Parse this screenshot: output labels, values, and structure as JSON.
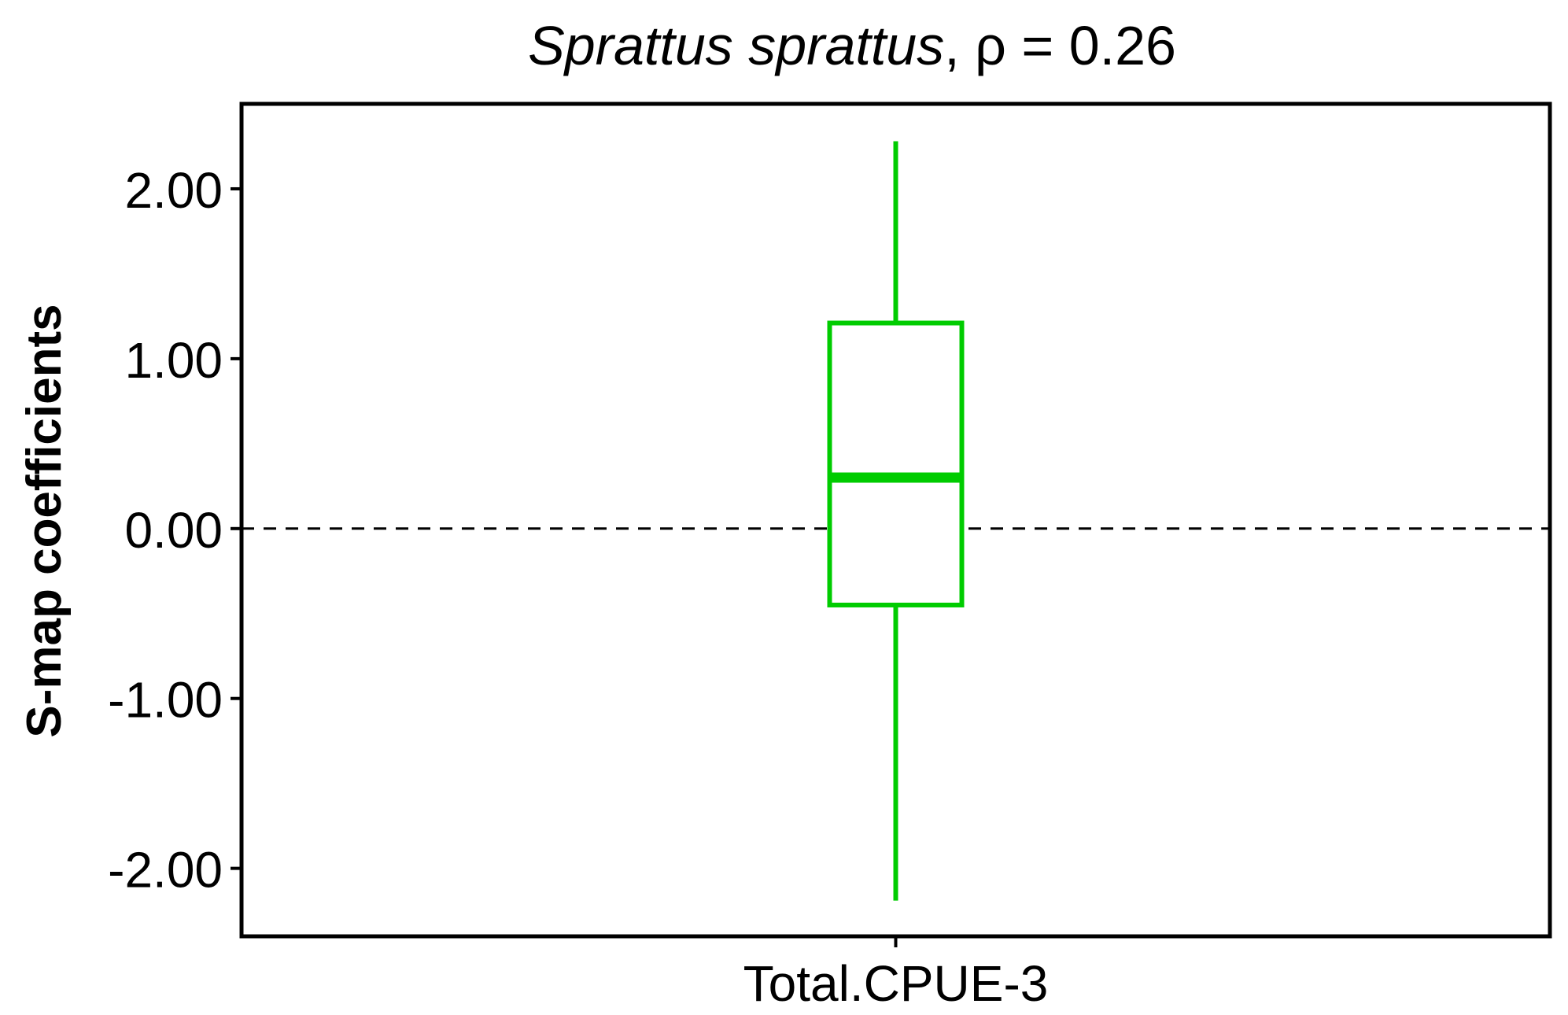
{
  "chart_data": {
    "type": "box",
    "title": {
      "species": "Sprattus sprattus",
      "suffix": ", ρ = 0.26"
    },
    "ylabel": "S-map coefficients",
    "xlabel": "",
    "categories": [
      "Total.CPUE-3"
    ],
    "ylim": [
      -2.4,
      2.5
    ],
    "yticks": [
      2,
      1,
      0,
      -1,
      -2
    ],
    "ytick_labels": [
      "2.00",
      "1.00",
      "0.00",
      "-1.00",
      "-2.00"
    ],
    "reference_line": {
      "y": 0,
      "style": "dashed",
      "color": "#000000"
    },
    "boxes": [
      {
        "category": "Total.CPUE-3",
        "whisker_low": -2.19,
        "q1": -0.45,
        "median": 0.3,
        "q3": 1.21,
        "whisker_high": 2.28,
        "color": "#00cc00"
      }
    ],
    "grid": false,
    "legend": "none"
  }
}
